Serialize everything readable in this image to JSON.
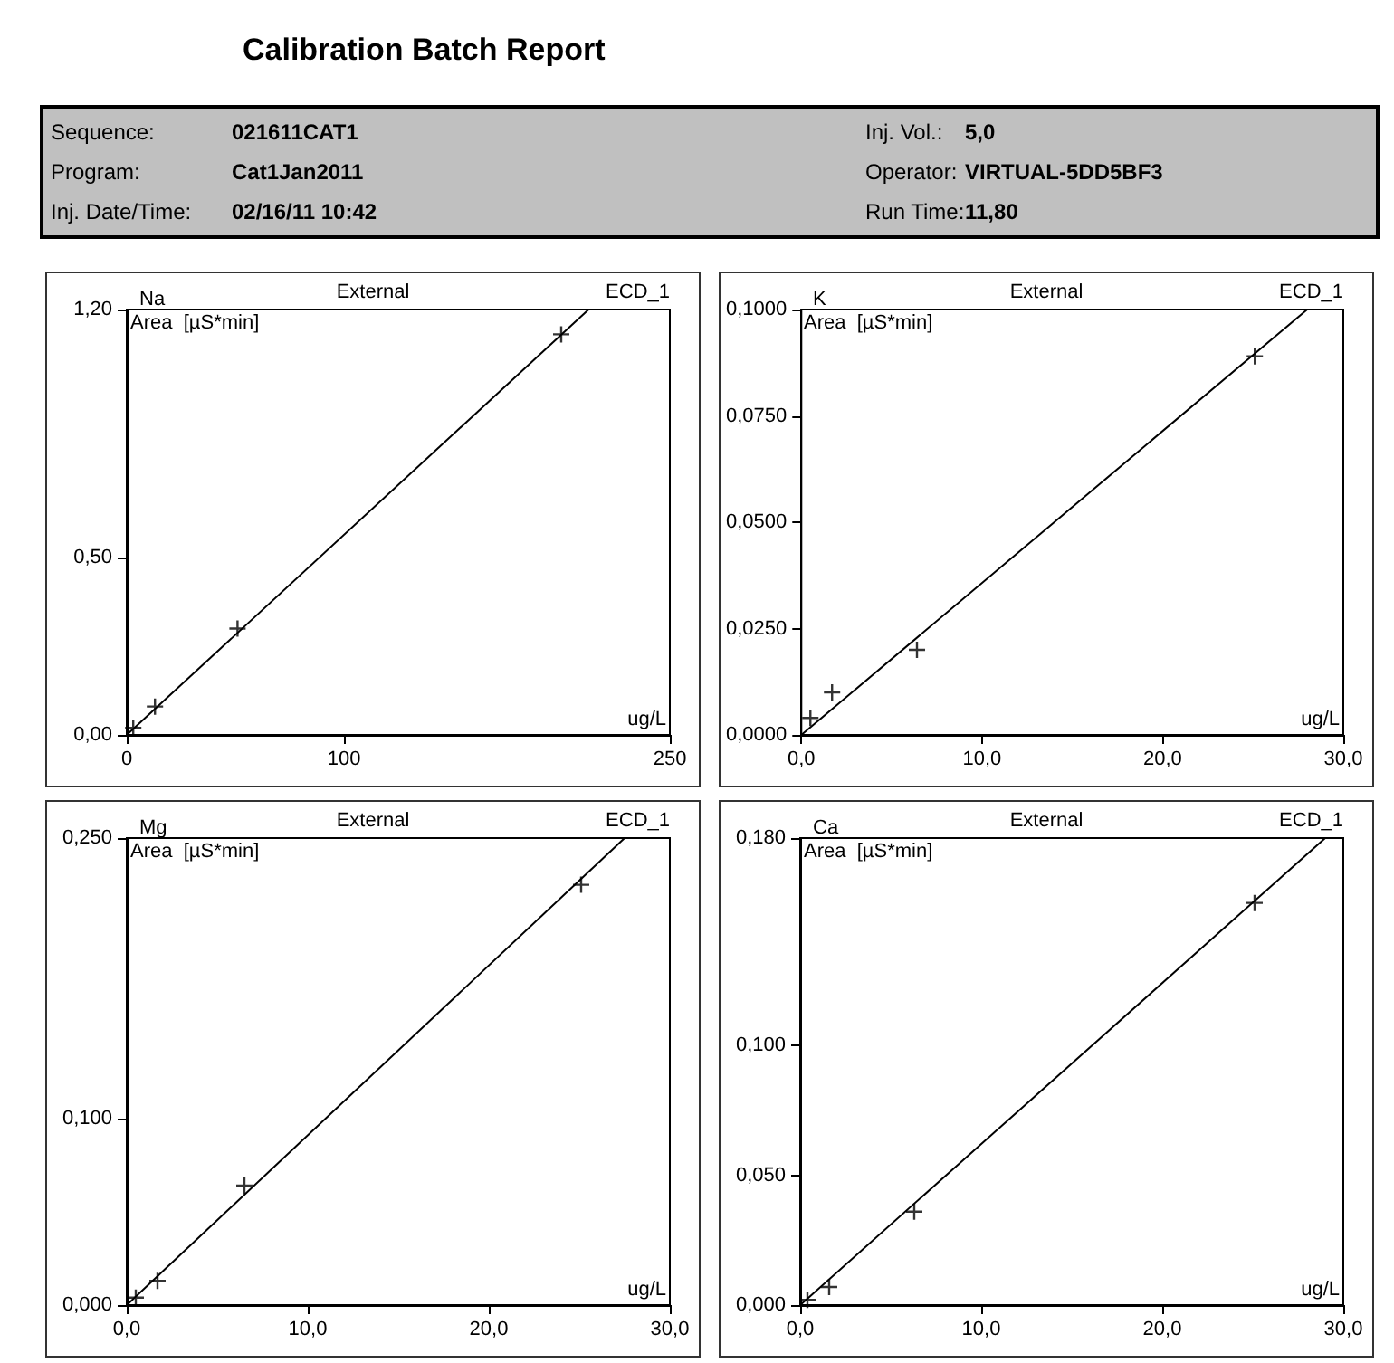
{
  "chart_data": [
    {
      "type": "other",
      "title": "Calibration Batch Report",
      "annotations": [
        "Sequence:",
        "021611CAT1",
        "Inj. Vol.:",
        "5,0",
        "Program:",
        "Cat1Jan2011",
        "Operator:",
        "VIRTUAL-5DD5BF3",
        "Inj. Date/Time:",
        "02/16/11 10:42",
        "Run Time:",
        "11,80"
      ]
    },
    {
      "type": "scatter",
      "title": "Na",
      "annotations": [
        "External",
        "ECD_1"
      ],
      "xlabel": "ug/L",
      "ylabel": "Area  [µS*min]",
      "grid": false,
      "xlim": [
        0,
        250
      ],
      "xticks": [
        0,
        100,
        250
      ],
      "ylim": [
        0,
        1.2
      ],
      "yticks": [
        {
          "value": 0,
          "label": "0,00"
        },
        {
          "value": 0.5,
          "label": "0,50"
        },
        {
          "value": 1.2,
          "label": "1,20"
        }
      ],
      "series": [
        {
          "color": "#000000",
          "marker": "cross",
          "x": [
            3,
            13,
            51,
            200
          ],
          "values": [
            0.02,
            0.08,
            0.3,
            1.13
          ]
        },
        {
          "type": "line",
          "color": "#000000",
          "marker": "none",
          "x": [
            0,
            212.6
          ],
          "values": [
            0,
            1.2
          ]
        }
      ]
    },
    {
      "type": "scatter",
      "title": "K",
      "annotations": [
        "External",
        "ECD_1"
      ],
      "xlabel": "ug/L",
      "ylabel": "Area  [µS*min]",
      "grid": false,
      "xlim": [
        0,
        30
      ],
      "xticks": [
        {
          "value": 0,
          "label": "0,0"
        },
        {
          "value": 10,
          "label": "10,0"
        },
        {
          "value": 20,
          "label": "20,0"
        },
        {
          "value": 30,
          "label": "30,0"
        }
      ],
      "ylim": [
        0,
        0.1
      ],
      "yticks": [
        {
          "value": 0,
          "label": "0,0000"
        },
        {
          "value": 0.025,
          "label": "0,0250"
        },
        {
          "value": 0.05,
          "label": "0,0500"
        },
        {
          "value": 0.075,
          "label": "0,0750"
        },
        {
          "value": 0.1,
          "label": "0,1000"
        }
      ],
      "series": [
        {
          "color": "#000000",
          "marker": "cross",
          "x": [
            0.5,
            1.7,
            6.4,
            25.1
          ],
          "values": [
            0.004,
            0.01,
            0.02,
            0.089
          ]
        },
        {
          "type": "line",
          "color": "#000000",
          "marker": "none",
          "x": [
            0,
            28
          ],
          "values": [
            0,
            0.1
          ]
        }
      ]
    },
    {
      "type": "scatter",
      "title": "Mg",
      "annotations": [
        "External",
        "ECD_1"
      ],
      "xlabel": "ug/L",
      "ylabel": "Area  [µS*min]",
      "grid": false,
      "xlim": [
        0,
        30
      ],
      "xticks": [
        {
          "value": 0,
          "label": "0,0"
        },
        {
          "value": 10,
          "label": "10,0"
        },
        {
          "value": 20,
          "label": "20,0"
        },
        {
          "value": 30,
          "label": "30,0"
        }
      ],
      "ylim": [
        0,
        0.25
      ],
      "yticks": [
        {
          "value": 0,
          "label": "0,000"
        },
        {
          "value": 0.1,
          "label": "0,100"
        },
        {
          "value": 0.25,
          "label": "0,250"
        }
      ],
      "series": [
        {
          "color": "#000000",
          "marker": "cross",
          "x": [
            0.5,
            1.7,
            6.5,
            25.1
          ],
          "values": [
            0.004,
            0.013,
            0.064,
            0.225
          ]
        },
        {
          "type": "line",
          "color": "#000000",
          "marker": "none",
          "x": [
            0,
            27.5
          ],
          "values": [
            0,
            0.25
          ]
        }
      ]
    },
    {
      "type": "scatter",
      "title": "Ca",
      "annotations": [
        "External",
        "ECD_1"
      ],
      "xlabel": "ug/L",
      "ylabel": "Area  [µS*min]",
      "grid": false,
      "xlim": [
        0,
        30
      ],
      "xticks": [
        {
          "value": 0,
          "label": "0,0"
        },
        {
          "value": 10,
          "label": "10,0"
        },
        {
          "value": 20,
          "label": "20,0"
        },
        {
          "value": 30,
          "label": "30,0"
        }
      ],
      "ylim": [
        0,
        0.18
      ],
      "yticks": [
        {
          "value": 0,
          "label": "0,000"
        },
        {
          "value": 0.05,
          "label": "0,050"
        },
        {
          "value": 0.1,
          "label": "0,100"
        },
        {
          "value": 0.18,
          "label": "0,180"
        }
      ],
      "series": [
        {
          "color": "#000000",
          "marker": "cross",
          "x": [
            0.4,
            1.6,
            6.3,
            25.1
          ],
          "values": [
            0.002,
            0.007,
            0.036,
            0.155
          ]
        },
        {
          "type": "line",
          "color": "#000000",
          "marker": "none",
          "x": [
            0,
            29
          ],
          "values": [
            0,
            0.18
          ]
        }
      ]
    }
  ]
}
